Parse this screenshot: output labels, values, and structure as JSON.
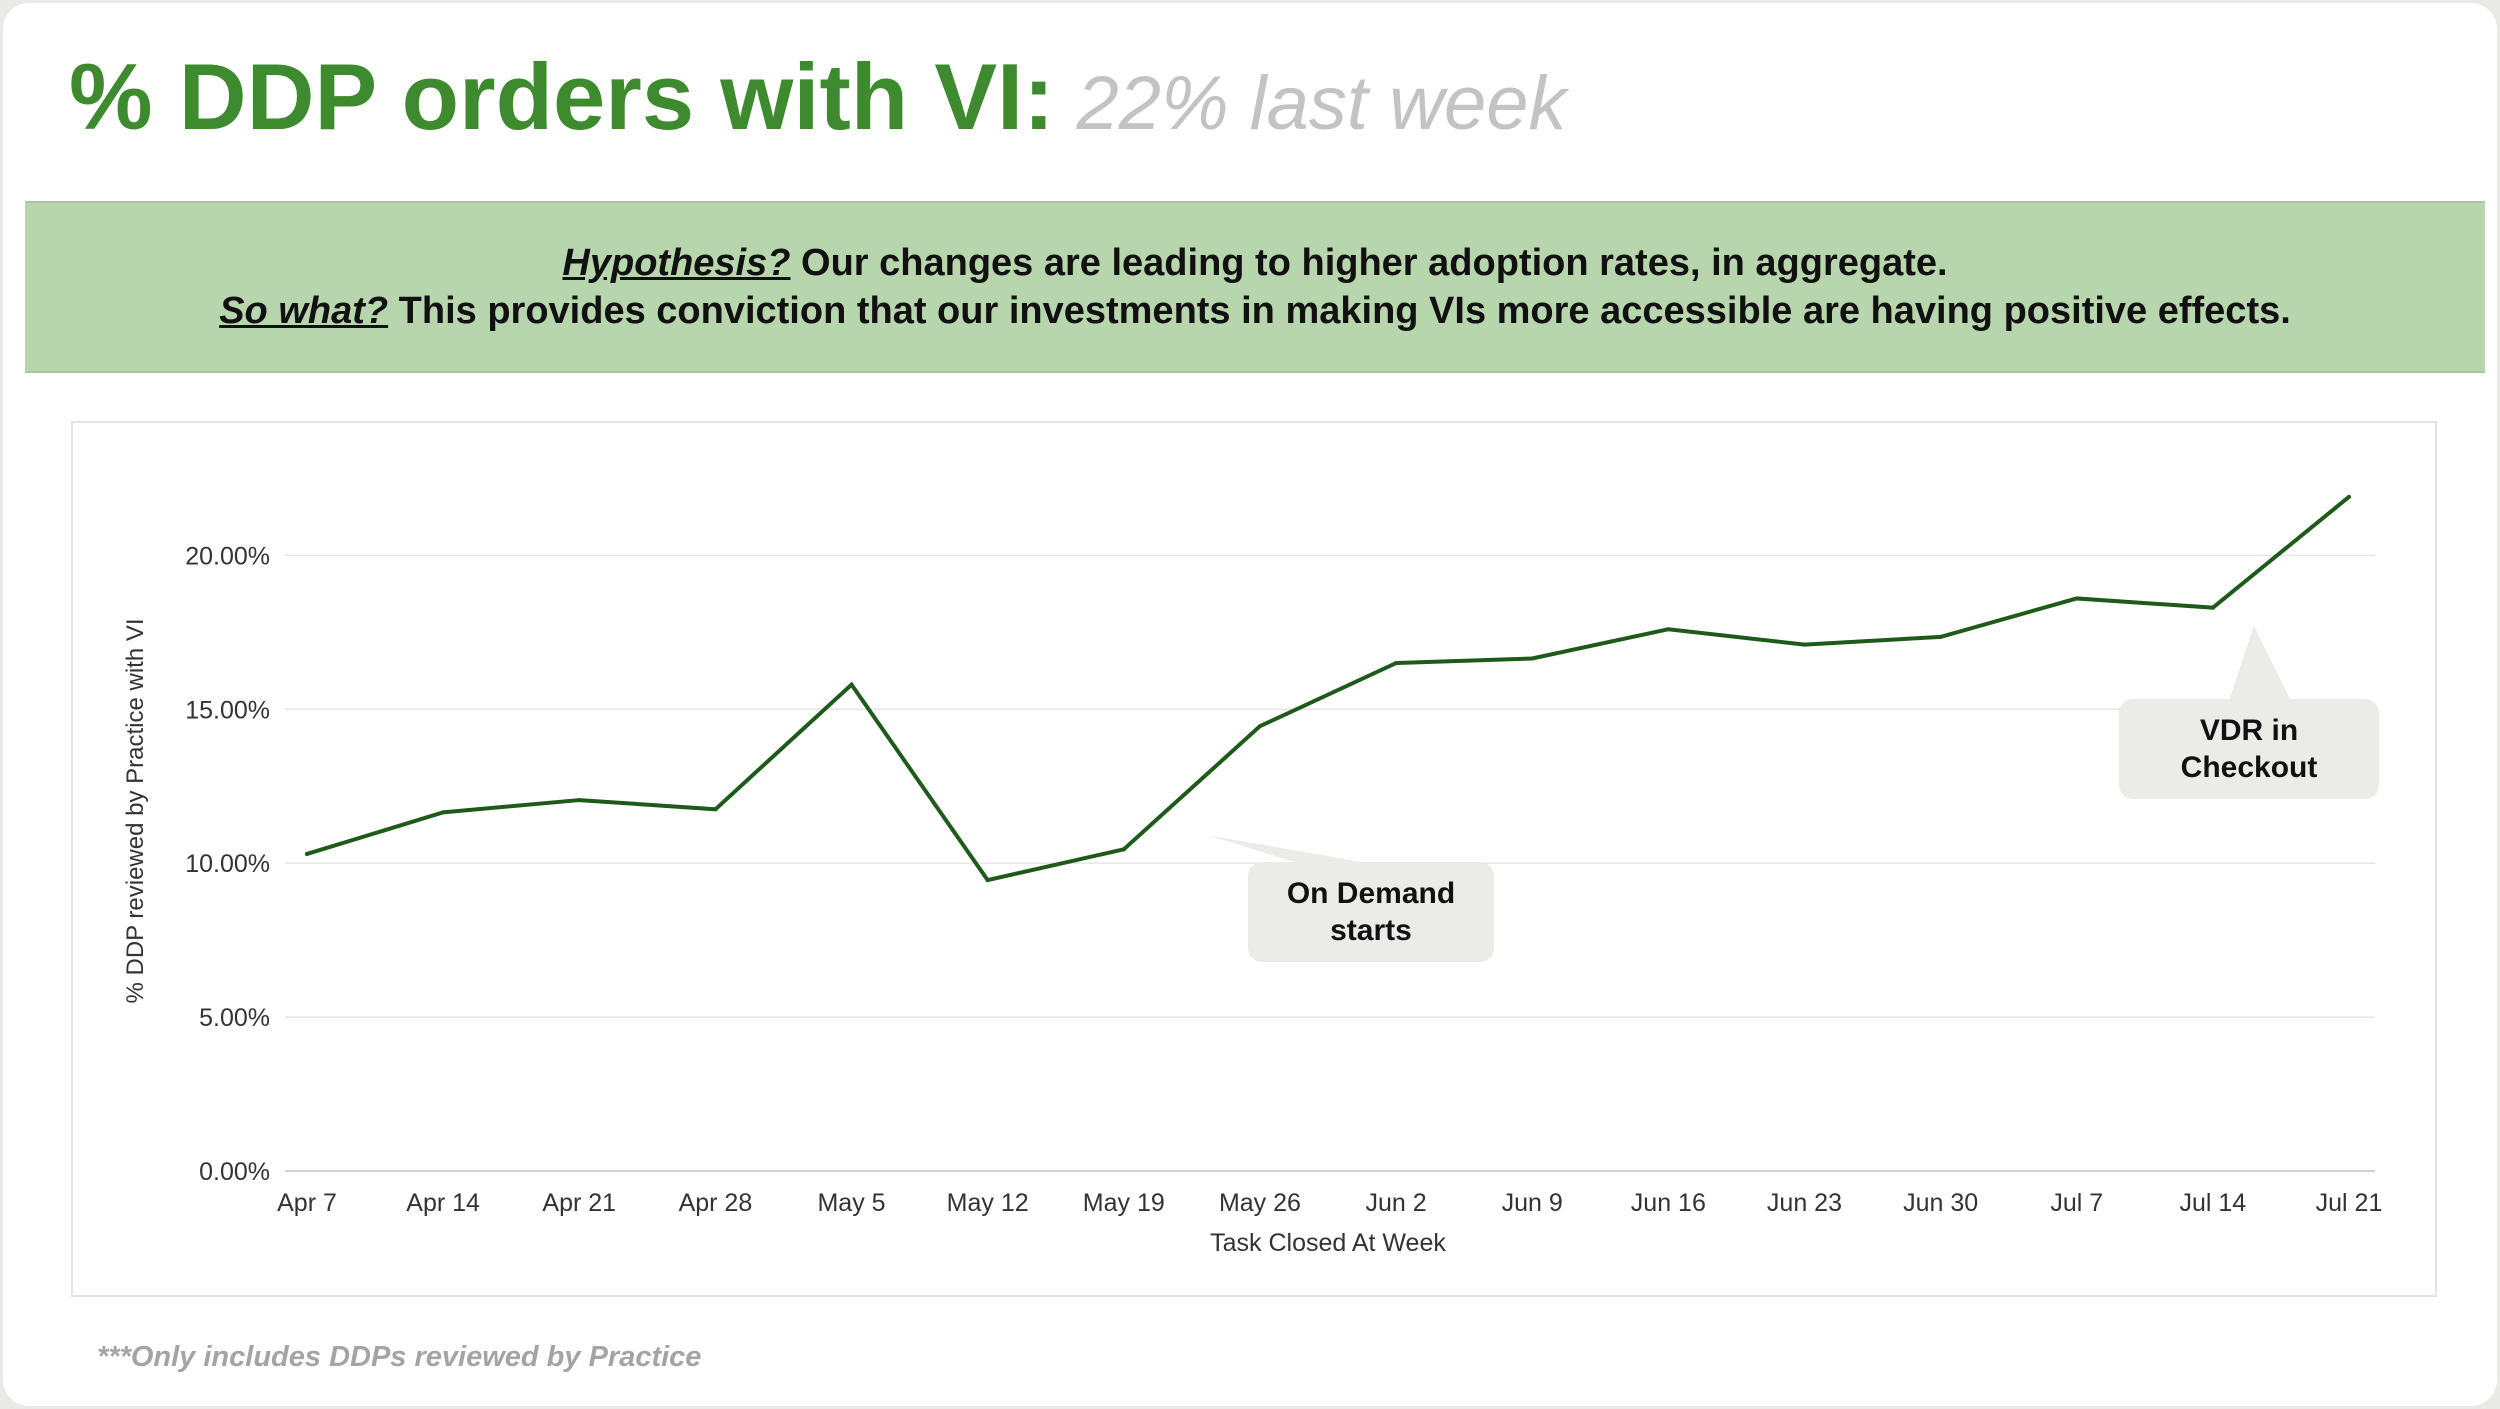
{
  "header": {
    "title": "% DDP orders with VI:",
    "subtitle": "22% last week"
  },
  "banner": {
    "line1_lead": "Hypothesis?",
    "line1_text": " Our changes are leading to higher adoption rates, in aggregate.",
    "line2_lead": "So what?",
    "line2_text": " This provides conviction that our investments in making VIs more accessible are having positive effects."
  },
  "chart_data": {
    "type": "line",
    "title": "",
    "xlabel": "Task Closed At Week",
    "ylabel": "% DDP reviewed by Practice with VI",
    "categories": [
      "Apr 7",
      "Apr 14",
      "Apr 21",
      "Apr 28",
      "May 5",
      "May 12",
      "May 19",
      "May 26",
      "Jun 2",
      "Jun 9",
      "Jun 16",
      "Jun 23",
      "Jun 30",
      "Jul 7",
      "Jul 14",
      "Jul 21"
    ],
    "series": [
      {
        "name": "% DDP reviewed by Practice with VI",
        "values": [
          10.3,
          11.65,
          12.05,
          11.75,
          15.8,
          9.45,
          10.45,
          14.45,
          16.5,
          16.65,
          17.6,
          17.1,
          17.35,
          18.6,
          18.3,
          21.9
        ]
      }
    ],
    "yticks": [
      0,
      5,
      10,
      15,
      20
    ],
    "ytick_labels": [
      "0.00%",
      "5.00%",
      "10.00%",
      "15.00%",
      "20.00%"
    ],
    "ylim": [
      0,
      23
    ],
    "grid": true,
    "line_color": "#1e5a1a",
    "annotations": [
      {
        "id": "on-demand",
        "text": "On Demand\nstarts",
        "anchor_category": "May 26"
      },
      {
        "id": "vdr",
        "text": "VDR in\nCheckout",
        "anchor_category": "Jul 14"
      }
    ]
  },
  "footnote": "***Only includes DDPs reviewed by Practice",
  "colors": {
    "title_green": "#3e8a2f",
    "banner_bg": "#b8d6ad",
    "callout_bg": "#ebebe8"
  }
}
